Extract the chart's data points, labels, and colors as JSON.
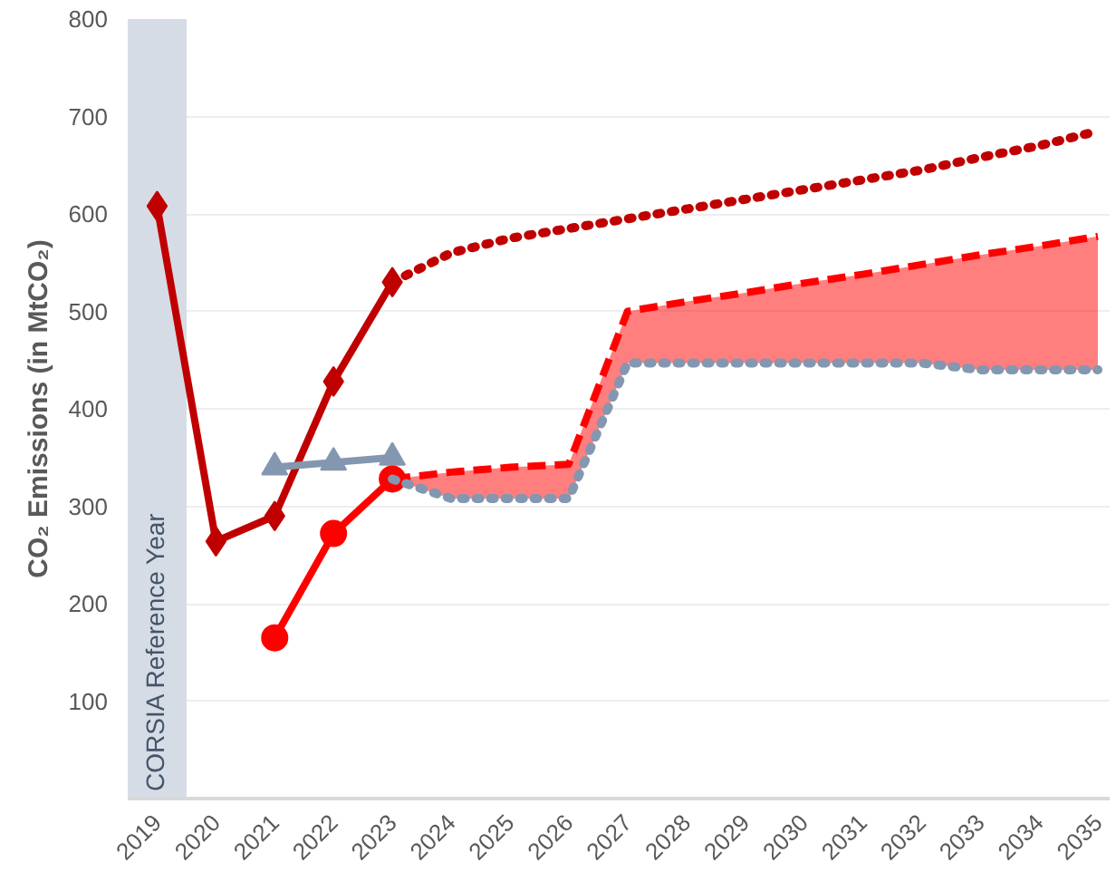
{
  "chart_data": {
    "type": "line",
    "ylabel": "CO₂ Emissions (in MtCO₂)",
    "xlim": [
      2018.5,
      2035.2
    ],
    "xticks": [
      2019,
      2020,
      2021,
      2022,
      2023,
      2024,
      2025,
      2026,
      2027,
      2028,
      2029,
      2030,
      2031,
      2032,
      2033,
      2034,
      2035
    ],
    "ylim": [
      0,
      800
    ],
    "yticks": [
      {
        "value": 0,
        "label": null
      },
      100,
      200,
      300,
      400,
      500,
      600,
      700,
      800
    ],
    "grid": "y",
    "series": [
      {
        "color": "#c00000",
        "x": [
          2019,
          2020,
          2021,
          2022,
          2023
        ],
        "values": [
          608,
          264,
          290,
          428,
          530
        ],
        "marker": "diamond",
        "line_style": "solid"
      },
      {
        "color": "#c00000",
        "x": [
          2023,
          2024,
          2025,
          2026,
          2027,
          2028,
          2029,
          2030,
          2031,
          2032,
          2033,
          2034,
          2035
        ],
        "values": [
          530,
          560,
          575,
          585,
          595,
          605,
          615,
          625,
          635,
          645,
          658,
          670,
          685
        ],
        "marker": "none",
        "line_style": "dotted"
      },
      {
        "color": "#8497b0",
        "x": [
          2021,
          2022,
          2023
        ],
        "values": [
          340,
          345,
          350
        ],
        "marker": "triangle",
        "line_style": "solid"
      },
      {
        "color": "#ff0000",
        "x": [
          2021,
          2022,
          2023
        ],
        "values": [
          165,
          272,
          328
        ],
        "marker": "circle",
        "line_style": "solid"
      },
      {
        "color": "#ff0000",
        "x": [
          2023,
          2024,
          2025,
          2026,
          2027,
          2028,
          2029,
          2030,
          2031,
          2032,
          2033,
          2034,
          2035
        ],
        "values": [
          328,
          335,
          340,
          343,
          500,
          510,
          519,
          529,
          538,
          548,
          558,
          567,
          577
        ],
        "lower": [
          328,
          308,
          308,
          308,
          447,
          447,
          447,
          447,
          447,
          447,
          440,
          440,
          440
        ],
        "upper": [
          328,
          335,
          340,
          343,
          500,
          510,
          519,
          529,
          538,
          548,
          558,
          567,
          577
        ],
        "marker": "none",
        "line_style": "dashed"
      },
      {
        "color": "#8497b0",
        "x": [
          2023,
          2024,
          2025,
          2026,
          2027,
          2028,
          2029,
          2030,
          2031,
          2032,
          2033,
          2034,
          2035
        ],
        "values": [
          328,
          308,
          308,
          308,
          447,
          447,
          447,
          447,
          447,
          447,
          440,
          440,
          440
        ],
        "marker": "none",
        "line_style": "dotted"
      }
    ],
    "bands": [
      {
        "axis": "x",
        "from": 2018.5,
        "to": 2019.5,
        "label": "CORSIA Reference Year",
        "color": "#d6dce5"
      }
    ]
  }
}
